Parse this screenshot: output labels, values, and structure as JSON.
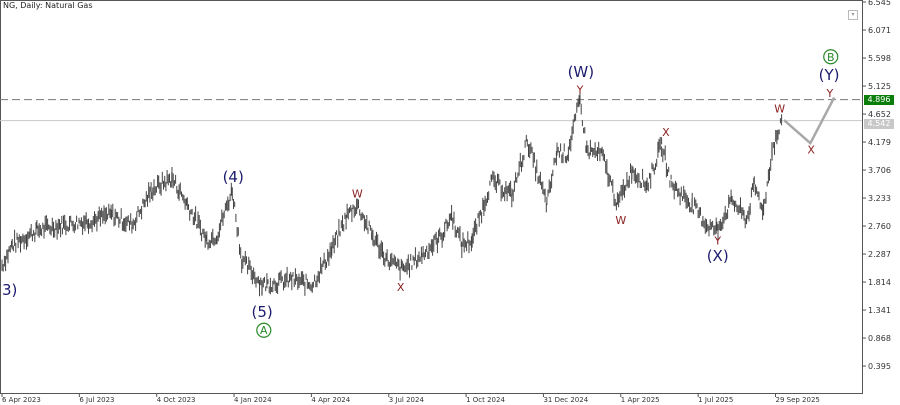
{
  "header": {
    "title": "NG, Daily:  Natural Gas"
  },
  "price_tags": {
    "resistance": "4.896",
    "current": "4.542"
  },
  "colors": {
    "resistance": "#0a7d0a",
    "current": "#c8c8c8",
    "wave_major": "#1c1c6e",
    "wave_minor": "#8b1e1e",
    "circle": "#2a8a2a",
    "price": "#444444",
    "projection": "#a8a8a8"
  },
  "chart_data": {
    "type": "line",
    "title": "NG, Daily: Natural Gas",
    "xlabel": "",
    "ylabel": "",
    "x_unit": "days since 6 Apr 2023",
    "xlim": [
      0,
      1014
    ],
    "ylim": [
      0.0,
      6.58
    ],
    "grid": false,
    "y_ticks": [
      "6.545",
      "6.071",
      "5.598",
      "5.125",
      "4.652",
      "4.179",
      "3.706",
      "3.233",
      "2.760",
      "2.287",
      "1.814",
      "1.341",
      "0.868",
      "0.395"
    ],
    "x_ticks": [
      {
        "day": 0,
        "label": "6 Apr 2023"
      },
      {
        "day": 91,
        "label": "6 Jul 2023"
      },
      {
        "day": 182,
        "label": "4 Oct 2023"
      },
      {
        "day": 273,
        "label": "4 Jan 2024"
      },
      {
        "day": 364,
        "label": "4 Apr 2024"
      },
      {
        "day": 455,
        "label": "3 Jul 2024"
      },
      {
        "day": 546,
        "label": "1 Oct 2024"
      },
      {
        "day": 637,
        "label": "31 Dec 2024"
      },
      {
        "day": 728,
        "label": "1 Apr 2025"
      },
      {
        "day": 819,
        "label": "1 Jul 2025"
      },
      {
        "day": 910,
        "label": "29 Sep 2025"
      }
    ],
    "series": [
      {
        "name": "Natural Gas",
        "points": [
          [
            0,
            2.1
          ],
          [
            12,
            2.44
          ],
          [
            41,
            2.69
          ],
          [
            71,
            2.78
          ],
          [
            106,
            2.86
          ],
          [
            129,
            2.95
          ],
          [
            153,
            2.78
          ],
          [
            176,
            3.37
          ],
          [
            200,
            3.57
          ],
          [
            218,
            3.12
          ],
          [
            241,
            2.52
          ],
          [
            253,
            2.61
          ],
          [
            271,
            3.37
          ],
          [
            282,
            2.19
          ],
          [
            306,
            1.77
          ],
          [
            341,
            1.85
          ],
          [
            365,
            1.77
          ],
          [
            388,
            2.36
          ],
          [
            406,
            2.95
          ],
          [
            418,
            3.12
          ],
          [
            435,
            2.61
          ],
          [
            453,
            2.19
          ],
          [
            471,
            2.02
          ],
          [
            494,
            2.27
          ],
          [
            518,
            2.61
          ],
          [
            529,
            2.95
          ],
          [
            541,
            2.44
          ],
          [
            553,
            2.52
          ],
          [
            576,
            3.53
          ],
          [
            600,
            3.28
          ],
          [
            618,
            4.21
          ],
          [
            641,
            3.12
          ],
          [
            653,
            4.04
          ],
          [
            665,
            3.96
          ],
          [
            680,
            4.89
          ],
          [
            688,
            4.04
          ],
          [
            706,
            3.96
          ],
          [
            724,
            3.12
          ],
          [
            741,
            3.71
          ],
          [
            759,
            3.45
          ],
          [
            776,
            4.13
          ],
          [
            788,
            3.45
          ],
          [
            812,
            3.12
          ],
          [
            829,
            2.78
          ],
          [
            841,
            2.69
          ],
          [
            859,
            3.2
          ],
          [
            876,
            2.86
          ],
          [
            885,
            3.45
          ],
          [
            896,
            3.03
          ],
          [
            906,
            4.04
          ],
          [
            918,
            4.52
          ]
        ]
      }
    ],
    "projection": [
      [
        920,
        4.55
      ],
      [
        951,
        4.16
      ],
      [
        979,
        4.93
      ]
    ],
    "hlines": [
      {
        "value": 4.896,
        "style": "dashed"
      },
      {
        "value": 4.542,
        "style": "solid"
      }
    ],
    "annotations": [
      {
        "text": "3)",
        "day": 9,
        "price": 1.68,
        "kind": "major"
      },
      {
        "text": "(4)",
        "day": 272,
        "price": 3.59,
        "kind": "major"
      },
      {
        "text": "(5)",
        "day": 306,
        "price": 1.31,
        "kind": "major"
      },
      {
        "text": "A",
        "day": 308,
        "price": 1.0,
        "kind": "circle"
      },
      {
        "text": "W",
        "day": 418,
        "price": 3.31,
        "kind": "minor"
      },
      {
        "text": "X",
        "day": 469,
        "price": 1.73,
        "kind": "minor"
      },
      {
        "text": "(W)",
        "day": 681,
        "price": 5.36,
        "kind": "major"
      },
      {
        "text": "Y",
        "day": 680,
        "price": 5.07,
        "kind": "minor"
      },
      {
        "text": "X",
        "day": 781,
        "price": 4.35,
        "kind": "minor"
      },
      {
        "text": "W",
        "day": 728,
        "price": 2.86,
        "kind": "minor"
      },
      {
        "text": "Y",
        "day": 842,
        "price": 2.52,
        "kind": "minor"
      },
      {
        "text": "(X)",
        "day": 842,
        "price": 2.25,
        "kind": "major"
      },
      {
        "text": "W",
        "day": 915,
        "price": 4.75,
        "kind": "minor"
      },
      {
        "text": "X",
        "day": 952,
        "price": 4.05,
        "kind": "minor"
      },
      {
        "text": "Y",
        "day": 974,
        "price": 5.01,
        "kind": "minor"
      },
      {
        "text": "(Y)",
        "day": 973,
        "price": 5.31,
        "kind": "major"
      },
      {
        "text": "B",
        "day": 975,
        "price": 5.62,
        "kind": "circle"
      }
    ]
  }
}
